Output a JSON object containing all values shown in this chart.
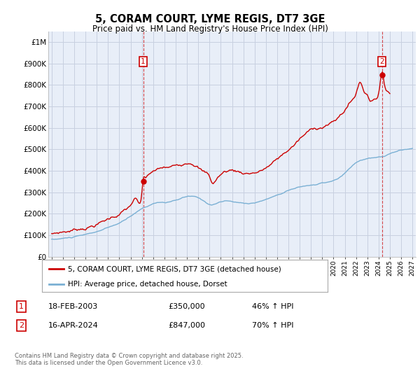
{
  "title": "5, CORAM COURT, LYME REGIS, DT7 3GE",
  "subtitle": "Price paid vs. HM Land Registry's House Price Index (HPI)",
  "legend_line1": "5, CORAM COURT, LYME REGIS, DT7 3GE (detached house)",
  "legend_line2": "HPI: Average price, detached house, Dorset",
  "annotation1_label": "1",
  "annotation1_date": "18-FEB-2003",
  "annotation1_price": "£350,000",
  "annotation1_hpi": "46% ↑ HPI",
  "annotation2_label": "2",
  "annotation2_date": "16-APR-2024",
  "annotation2_price": "£847,000",
  "annotation2_hpi": "70% ↑ HPI",
  "footnote": "Contains HM Land Registry data © Crown copyright and database right 2025.\nThis data is licensed under the Open Government Licence v3.0.",
  "red_color": "#cc0000",
  "blue_color": "#7ab0d4",
  "vline_color": "#cc0000",
  "grid_color": "#c8d0e0",
  "background_color": "#ffffff",
  "plot_bg_color": "#e8eef8",
  "ylim": [
    0,
    1050000
  ],
  "yticks": [
    0,
    100000,
    200000,
    300000,
    400000,
    500000,
    600000,
    700000,
    800000,
    900000,
    1000000
  ],
  "ytick_labels": [
    "£0",
    "£100K",
    "£200K",
    "£300K",
    "£400K",
    "£500K",
    "£600K",
    "£700K",
    "£800K",
    "£900K",
    "£1M"
  ],
  "sale1_x": 2003.12,
  "sale1_y": 350000,
  "sale2_x": 2024.29,
  "sale2_y": 847000,
  "xlim_left": 1994.7,
  "xlim_right": 2027.3
}
